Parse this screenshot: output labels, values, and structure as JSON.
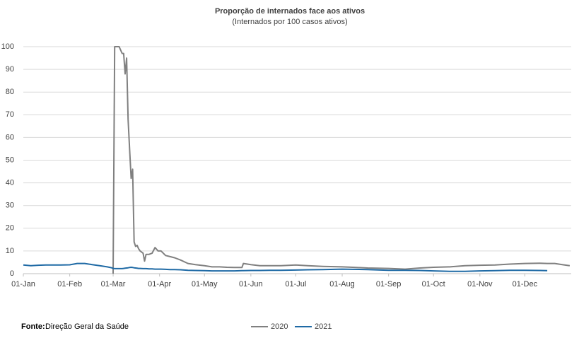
{
  "chart_data": {
    "type": "line",
    "title": "Proporção de internados face aos ativos",
    "subtitle": "(Internados por 100 casos ativos)",
    "source_label": "Fonte:",
    "source": "Direção Geral da Saúde",
    "x": [
      0,
      5,
      10,
      15,
      20,
      25,
      31,
      36,
      41,
      46,
      51,
      56,
      59,
      60,
      61,
      62,
      64,
      66,
      67,
      68,
      69,
      70,
      71,
      72,
      73,
      74,
      75,
      76,
      77,
      78,
      80,
      81,
      82,
      84,
      86,
      88,
      90,
      92,
      95,
      98,
      101,
      105,
      110,
      115,
      121,
      126,
      131,
      136,
      141,
      146,
      147,
      152,
      158,
      165,
      172,
      182,
      190,
      200,
      213,
      220,
      230,
      244,
      255,
      265,
      274,
      285,
      295,
      305,
      315,
      325,
      335,
      345,
      350,
      355,
      360,
      365
    ],
    "series": [
      {
        "name": "2020",
        "color": "#808080",
        "values": [
          null,
          null,
          null,
          null,
          null,
          null,
          null,
          null,
          null,
          null,
          null,
          null,
          null,
          0,
          100,
          100,
          100,
          97,
          97,
          88,
          95,
          68,
          55,
          42,
          46,
          14,
          12,
          12.5,
          11,
          10,
          9,
          5.5,
          8.5,
          8.5,
          9,
          11.5,
          10,
          10,
          8,
          7.5,
          7,
          6,
          4.5,
          4,
          3.5,
          3,
          3,
          2.8,
          2.7,
          2.7,
          4.5,
          4,
          3.5,
          3.5,
          3.5,
          3.8,
          3.5,
          3.2,
          3,
          2.8,
          2.5,
          2.3,
          2,
          2.5,
          2.8,
          3,
          3.5,
          3.7,
          3.8,
          4.2,
          4.5,
          4.6,
          4.5,
          4.5,
          4,
          3.5
        ]
      },
      {
        "name": "2021",
        "color": "#1f6aa5",
        "values": [
          3.8,
          3.5,
          3.7,
          3.8,
          3.8,
          3.8,
          3.9,
          4.5,
          4.5,
          4,
          3.5,
          3,
          2.6,
          2.3,
          2.2,
          2.2,
          2.2,
          2.2,
          2.3,
          2.4,
          2.5,
          2.6,
          2.7,
          2.8,
          2.7,
          2.6,
          2.5,
          2.4,
          2.3,
          2.3,
          2.2,
          2.2,
          2.2,
          2.1,
          2.1,
          2,
          2,
          2,
          1.9,
          1.8,
          1.8,
          1.7,
          1.5,
          1.4,
          1.3,
          1.2,
          1.2,
          1.2,
          1.2,
          1.3,
          1.3,
          1.4,
          1.4,
          1.5,
          1.5,
          1.6,
          1.7,
          1.8,
          2,
          1.9,
          1.8,
          1.5,
          1.5,
          1.4,
          1.2,
          1,
          1,
          1.2,
          1.3,
          1.5,
          1.5,
          1.4,
          1.3,
          null,
          null,
          null
        ]
      }
    ],
    "xlim": [
      0,
      366
    ],
    "xticks": [
      {
        "value": 0,
        "label": "01-Jan"
      },
      {
        "value": 31,
        "label": "01-Feb"
      },
      {
        "value": 60,
        "label": "01-Mar"
      },
      {
        "value": 91,
        "label": "01-Apr"
      },
      {
        "value": 121,
        "label": "01-May"
      },
      {
        "value": 152,
        "label": "01-Jun"
      },
      {
        "value": 182,
        "label": "01-Jul"
      },
      {
        "value": 213,
        "label": "01-Aug"
      },
      {
        "value": 244,
        "label": "01-Sep"
      },
      {
        "value": 274,
        "label": "01-Oct"
      },
      {
        "value": 305,
        "label": "01-Nov"
      },
      {
        "value": 335,
        "label": "01-Dec"
      }
    ],
    "ylim": [
      0,
      100
    ],
    "yticks": [
      0,
      10,
      20,
      30,
      40,
      50,
      60,
      70,
      80,
      90,
      100
    ],
    "grid": true
  }
}
